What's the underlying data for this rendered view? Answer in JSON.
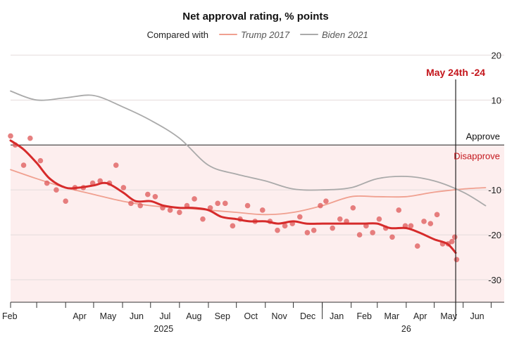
{
  "chart_data": {
    "type": "line",
    "title": "Net approval rating, % points",
    "legend": {
      "prefix": "Compared with",
      "placement": "top",
      "entries": [
        {
          "name": "Trump 2017",
          "color": "#f0a090"
        },
        {
          "name": "Biden 2021",
          "color": "#aaaaaa"
        }
      ]
    },
    "y_axis": {
      "range": [
        -35,
        21
      ],
      "ticks": [
        {
          "value": 20,
          "label": "20"
        },
        {
          "value": 10,
          "label": "10"
        },
        {
          "value": -10,
          "label": "-10"
        },
        {
          "value": -20,
          "label": "-20"
        },
        {
          "value": -30,
          "label": "-30"
        }
      ]
    },
    "x_axis": {
      "range": [
        "2025-02-01",
        "2026-07-15"
      ],
      "month_ticks": [
        {
          "date": "2025-02-01",
          "label": "Feb"
        },
        {
          "date": "2025-03-01",
          "label": ""
        },
        {
          "date": "2025-04-01",
          "label": "Apr"
        },
        {
          "date": "2025-05-01",
          "label": "May"
        },
        {
          "date": "2025-06-01",
          "label": "Jun"
        },
        {
          "date": "2025-07-01",
          "label": "Jul"
        },
        {
          "date": "2025-08-01",
          "label": "Aug"
        },
        {
          "date": "2025-09-01",
          "label": "Sep"
        },
        {
          "date": "2025-10-01",
          "label": "Oct"
        },
        {
          "date": "2025-11-01",
          "label": "Nov"
        },
        {
          "date": "2025-12-01",
          "label": "Dec"
        },
        {
          "date": "2026-01-01",
          "label": "Jan"
        },
        {
          "date": "2026-02-01",
          "label": "Feb"
        },
        {
          "date": "2026-03-01",
          "label": "Mar"
        },
        {
          "date": "2026-04-01",
          "label": "Apr"
        },
        {
          "date": "2026-05-01",
          "label": "May"
        },
        {
          "date": "2026-06-01",
          "label": "Jun"
        },
        {
          "date": "2026-07-01",
          "label": ""
        }
      ],
      "year_labels": [
        {
          "date": "2025-07-15",
          "label": "2025"
        },
        {
          "date": "2026-04-01",
          "label": "26"
        }
      ],
      "year_divider": "2026-01-01"
    },
    "zones": {
      "approve_label": "Approve",
      "disapprove_label": "Disapprove",
      "zero_line": 0
    },
    "annotation": {
      "date": "2026-05-24",
      "label": "May 24th -24"
    },
    "series": [
      {
        "name": "Trump 2017",
        "color": "#f0a090",
        "points": [
          {
            "x": "2025-02-01",
            "y": -5.5
          },
          {
            "x": "2025-03-01",
            "y": -7.5
          },
          {
            "x": "2025-04-01",
            "y": -9.5
          },
          {
            "x": "2025-05-01",
            "y": -11
          },
          {
            "x": "2025-06-01",
            "y": -12.5
          },
          {
            "x": "2025-07-01",
            "y": -13.5
          },
          {
            "x": "2025-08-01",
            "y": -14
          },
          {
            "x": "2025-09-01",
            "y": -14.5
          },
          {
            "x": "2025-10-01",
            "y": -15
          },
          {
            "x": "2025-11-01",
            "y": -15.5
          },
          {
            "x": "2025-12-01",
            "y": -15
          },
          {
            "x": "2026-01-01",
            "y": -13.5
          },
          {
            "x": "2026-02-01",
            "y": -11.5
          },
          {
            "x": "2026-03-01",
            "y": -11.5
          },
          {
            "x": "2026-04-01",
            "y": -11.5
          },
          {
            "x": "2026-05-01",
            "y": -10.5
          },
          {
            "x": "2026-06-01",
            "y": -9.8
          },
          {
            "x": "2026-06-25",
            "y": -9.5
          }
        ]
      },
      {
        "name": "Biden 2021",
        "color": "#aaaaaa",
        "points": [
          {
            "x": "2025-02-01",
            "y": 12
          },
          {
            "x": "2025-03-01",
            "y": 10
          },
          {
            "x": "2025-04-01",
            "y": 10.5
          },
          {
            "x": "2025-05-01",
            "y": 11
          },
          {
            "x": "2025-06-01",
            "y": 8.5
          },
          {
            "x": "2025-07-01",
            "y": 5.5
          },
          {
            "x": "2025-08-01",
            "y": 1.5
          },
          {
            "x": "2025-09-01",
            "y": -4.5
          },
          {
            "x": "2025-10-01",
            "y": -6.5
          },
          {
            "x": "2025-11-01",
            "y": -8
          },
          {
            "x": "2025-12-01",
            "y": -9.8
          },
          {
            "x": "2026-01-01",
            "y": -10
          },
          {
            "x": "2026-02-01",
            "y": -9.5
          },
          {
            "x": "2026-03-01",
            "y": -7.5
          },
          {
            "x": "2026-04-01",
            "y": -7
          },
          {
            "x": "2026-05-01",
            "y": -8
          },
          {
            "x": "2026-06-01",
            "y": -10.5
          },
          {
            "x": "2026-06-25",
            "y": -13.5
          }
        ]
      },
      {
        "name": "Trump 2025",
        "color": "#d62b2b",
        "points": [
          {
            "x": "2025-02-01",
            "y": 1
          },
          {
            "x": "2025-02-15",
            "y": -1
          },
          {
            "x": "2025-03-01",
            "y": -4
          },
          {
            "x": "2025-03-15",
            "y": -7.5
          },
          {
            "x": "2025-04-01",
            "y": -9.5
          },
          {
            "x": "2025-04-15",
            "y": -9.5
          },
          {
            "x": "2025-05-01",
            "y": -9
          },
          {
            "x": "2025-05-15",
            "y": -8.5
          },
          {
            "x": "2025-06-01",
            "y": -10.5
          },
          {
            "x": "2025-06-15",
            "y": -12.5
          },
          {
            "x": "2025-07-01",
            "y": -12.5
          },
          {
            "x": "2025-07-15",
            "y": -13.5
          },
          {
            "x": "2025-08-01",
            "y": -14
          },
          {
            "x": "2025-08-15",
            "y": -14
          },
          {
            "x": "2025-09-01",
            "y": -14.5
          },
          {
            "x": "2025-09-15",
            "y": -16
          },
          {
            "x": "2025-10-01",
            "y": -16.5
          },
          {
            "x": "2025-10-15",
            "y": -17
          },
          {
            "x": "2025-11-01",
            "y": -17
          },
          {
            "x": "2025-11-15",
            "y": -17.5
          },
          {
            "x": "2025-12-01",
            "y": -17
          },
          {
            "x": "2025-12-15",
            "y": -17.5
          },
          {
            "x": "2026-01-01",
            "y": -17.5
          },
          {
            "x": "2026-01-15",
            "y": -17.5
          },
          {
            "x": "2026-02-01",
            "y": -17.5
          },
          {
            "x": "2026-02-15",
            "y": -17.5
          },
          {
            "x": "2026-03-01",
            "y": -17.5
          },
          {
            "x": "2026-03-15",
            "y": -18.5
          },
          {
            "x": "2026-04-01",
            "y": -18.5
          },
          {
            "x": "2026-04-15",
            "y": -19.5
          },
          {
            "x": "2026-05-01",
            "y": -21
          },
          {
            "x": "2026-05-15",
            "y": -22
          },
          {
            "x": "2026-05-24",
            "y": -24
          }
        ]
      }
    ],
    "polls": [
      {
        "x": "2025-02-01",
        "y": 2
      },
      {
        "x": "2025-02-06",
        "y": 0
      },
      {
        "x": "2025-02-15",
        "y": -4.5
      },
      {
        "x": "2025-02-22",
        "y": 1.5
      },
      {
        "x": "2025-03-05",
        "y": -3.5
      },
      {
        "x": "2025-03-12",
        "y": -8.5
      },
      {
        "x": "2025-03-22",
        "y": -10
      },
      {
        "x": "2025-04-01",
        "y": -12.5
      },
      {
        "x": "2025-04-11",
        "y": -9.5
      },
      {
        "x": "2025-04-20",
        "y": -9.5
      },
      {
        "x": "2025-04-30",
        "y": -8.5
      },
      {
        "x": "2025-05-08",
        "y": -8
      },
      {
        "x": "2025-05-18",
        "y": -8.5
      },
      {
        "x": "2025-05-25",
        "y": -4.5
      },
      {
        "x": "2025-06-02",
        "y": -9.5
      },
      {
        "x": "2025-06-10",
        "y": -13
      },
      {
        "x": "2025-06-20",
        "y": -13.5
      },
      {
        "x": "2025-06-28",
        "y": -11
      },
      {
        "x": "2025-07-06",
        "y": -11.5
      },
      {
        "x": "2025-07-14",
        "y": -14
      },
      {
        "x": "2025-07-22",
        "y": -14.5
      },
      {
        "x": "2025-08-01",
        "y": -15
      },
      {
        "x": "2025-08-09",
        "y": -13.5
      },
      {
        "x": "2025-08-17",
        "y": -12
      },
      {
        "x": "2025-08-26",
        "y": -16.5
      },
      {
        "x": "2025-09-03",
        "y": -14
      },
      {
        "x": "2025-09-11",
        "y": -13
      },
      {
        "x": "2025-09-19",
        "y": -13
      },
      {
        "x": "2025-09-27",
        "y": -18
      },
      {
        "x": "2025-10-05",
        "y": -16.5
      },
      {
        "x": "2025-10-13",
        "y": -13.5
      },
      {
        "x": "2025-10-21",
        "y": -17
      },
      {
        "x": "2025-10-29",
        "y": -14.5
      },
      {
        "x": "2025-11-06",
        "y": -17
      },
      {
        "x": "2025-11-14",
        "y": -19
      },
      {
        "x": "2025-11-22",
        "y": -18
      },
      {
        "x": "2025-11-30",
        "y": -17.5
      },
      {
        "x": "2025-12-08",
        "y": -16
      },
      {
        "x": "2025-12-16",
        "y": -19.5
      },
      {
        "x": "2025-12-23",
        "y": -19
      },
      {
        "x": "2025-12-30",
        "y": -13.5
      },
      {
        "x": "2026-01-05",
        "y": -12.5
      },
      {
        "x": "2026-01-12",
        "y": -18.5
      },
      {
        "x": "2026-01-20",
        "y": -16.5
      },
      {
        "x": "2026-01-27",
        "y": -17
      },
      {
        "x": "2026-02-03",
        "y": -14
      },
      {
        "x": "2026-02-10",
        "y": -20
      },
      {
        "x": "2026-02-17",
        "y": -18
      },
      {
        "x": "2026-02-24",
        "y": -19.5
      },
      {
        "x": "2026-03-03",
        "y": -16.5
      },
      {
        "x": "2026-03-10",
        "y": -18.5
      },
      {
        "x": "2026-03-17",
        "y": -20.5
      },
      {
        "x": "2026-03-24",
        "y": -14.5
      },
      {
        "x": "2026-03-31",
        "y": -18
      },
      {
        "x": "2026-04-06",
        "y": -18
      },
      {
        "x": "2026-04-13",
        "y": -22.5
      },
      {
        "x": "2026-04-20",
        "y": -17
      },
      {
        "x": "2026-04-27",
        "y": -17.5
      },
      {
        "x": "2026-05-04",
        "y": -15.5
      },
      {
        "x": "2026-05-10",
        "y": -22
      },
      {
        "x": "2026-05-16",
        "y": -22
      },
      {
        "x": "2026-05-20",
        "y": -21.5
      },
      {
        "x": "2026-05-23",
        "y": -20.5
      },
      {
        "x": "2026-05-25",
        "y": -25.5
      }
    ]
  }
}
